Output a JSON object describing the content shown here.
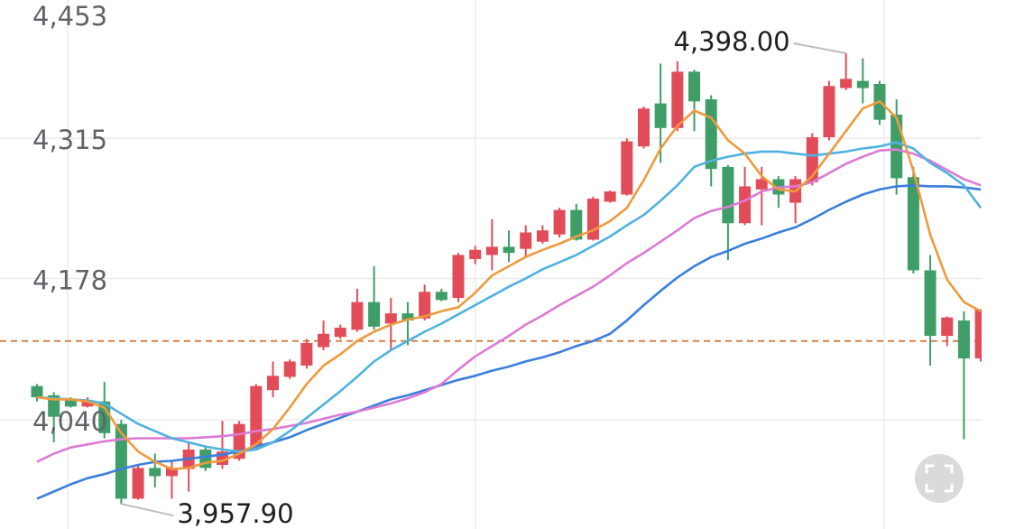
{
  "chart_data": {
    "type": "candlestick",
    "ylim": [
      3933.4,
      4450
    ],
    "yticks": [
      {
        "value": 4040,
        "label": "4,040"
      },
      {
        "value": 4178,
        "label": "4,178"
      },
      {
        "value": 4315,
        "label": "4,315"
      },
      {
        "value": 4453,
        "label": "4,453"
      }
    ],
    "grid": true,
    "up_color": "#e24c59",
    "down_color": "#3f9d68",
    "candles": {
      "open": [
        4073,
        4064,
        4060,
        4053,
        4058,
        4036,
        3963,
        3993,
        3985,
        3992,
        4011,
        3996,
        4002,
        4014,
        4069,
        4082,
        4093,
        4111,
        4121,
        4128,
        4155,
        4134,
        4144,
        4139,
        4165,
        4159,
        4197,
        4201,
        4209,
        4207,
        4214,
        4221,
        4245,
        4216,
        4253,
        4260,
        4307,
        4349,
        4325,
        4380,
        4353,
        4287,
        4232,
        4265,
        4275,
        4252,
        4272,
        4316,
        4364,
        4371,
        4368,
        4338,
        4277,
        4186,
        4122,
        4137,
        4100
      ],
      "high": [
        4075,
        4067,
        4062,
        4062,
        4077,
        4040,
        3996,
        4007,
        4000,
        4018,
        4014,
        4039,
        4039,
        4075,
        4097,
        4099,
        4119,
        4137,
        4133,
        4168,
        4190,
        4159,
        4155,
        4172,
        4168,
        4203,
        4210,
        4236,
        4225,
        4230,
        4230,
        4247,
        4251,
        4258,
        4264,
        4315,
        4346,
        4388,
        4390,
        4382,
        4357,
        4289,
        4287,
        4287,
        4278,
        4278,
        4320,
        4371,
        4398,
        4393,
        4371,
        4353,
        4287,
        4201,
        4141,
        4146,
        4148
      ],
      "low": [
        4058,
        4018,
        4052,
        4052,
        4022,
        3957.9,
        3962,
        3974,
        3963,
        3970,
        3990,
        3992,
        4000,
        4012,
        4062,
        4080,
        4090,
        4108,
        4119,
        4126,
        4128,
        4108,
        4113,
        4137,
        4156,
        4155,
        4192,
        4186,
        4194,
        4199,
        4212,
        4218,
        4215,
        4215,
        4252,
        4259,
        4305,
        4291,
        4322,
        4322,
        4268,
        4196,
        4230,
        4230,
        4247,
        4232,
        4269,
        4313,
        4362,
        4349,
        4328,
        4260,
        4183,
        4093,
        4112,
        4021,
        4097
      ],
      "close": [
        4062,
        4043,
        4053,
        4059,
        4027,
        3963,
        3993,
        3985,
        3993,
        4011,
        3993,
        4009,
        4036,
        4073,
        4083,
        4097,
        4115,
        4124,
        4130,
        4155,
        4131,
        4144,
        4137,
        4165,
        4157,
        4201,
        4206,
        4209,
        4203,
        4223,
        4225,
        4245,
        4216,
        4256,
        4263,
        4312,
        4344,
        4325,
        4380,
        4351,
        4285,
        4232,
        4268,
        4275,
        4260,
        4275,
        4316,
        4366,
        4373,
        4364,
        4333,
        4276,
        4186,
        4122,
        4140,
        4100,
        4148
      ]
    },
    "lines": [
      {
        "color": "#3b7fdc",
        "values": [
          3963,
          3970,
          3977,
          3983,
          3987,
          3992,
          3996,
          3999,
          4000,
          4002,
          4004,
          4006,
          4009,
          4014,
          4018,
          4023,
          4030,
          4036,
          4042,
          4048,
          4054,
          4060,
          4064,
          4069,
          4074,
          4079,
          4083,
          4088,
          4092,
          4097,
          4101,
          4106,
          4112,
          4117,
          4124,
          4137,
          4152,
          4166,
          4179,
          4190,
          4199,
          4205,
          4212,
          4217,
          4223,
          4228,
          4236,
          4245,
          4253,
          4260,
          4265,
          4268,
          4269,
          4268,
          4268,
          4267,
          4265
        ]
      },
      {
        "color": "#dc7ad6",
        "values": [
          3999,
          4007,
          4013,
          4016,
          4019,
          4021,
          4022,
          4022,
          4022,
          4022,
          4023,
          4024,
          4026,
          4029,
          4031,
          4034,
          4037,
          4041,
          4045,
          4048,
          4052,
          4056,
          4061,
          4067,
          4075,
          4089,
          4102,
          4112,
          4122,
          4133,
          4142,
          4152,
          4161,
          4170,
          4181,
          4193,
          4203,
          4214,
          4225,
          4237,
          4244,
          4248,
          4254,
          4263,
          4267,
          4268,
          4272,
          4281,
          4290,
          4297,
          4303,
          4304,
          4300,
          4293,
          4284,
          4275,
          4269
        ]
      },
      {
        "color": "#4fb2df",
        "values": [
          4062,
          4061,
          4060,
          4059,
          4056,
          4046,
          4036,
          4029,
          4022,
          4018,
          4014,
          4011,
          4009,
          4011,
          4018,
          4029,
          4042,
          4055,
          4068,
          4082,
          4097,
          4108,
          4117,
          4126,
          4134,
          4143,
          4152,
          4161,
          4170,
          4178,
          4187,
          4194,
          4201,
          4210,
          4219,
          4230,
          4240,
          4254,
          4269,
          4287,
          4293,
          4297,
          4300,
          4302,
          4302,
          4300,
          4298,
          4300,
          4302,
          4305,
          4307,
          4311,
          4305,
          4291,
          4281,
          4269,
          4247
        ]
      },
      {
        "color": "#ee9a3e",
        "values": [
          4062,
          4060,
          4060,
          4058,
          4052,
          4027,
          4009,
          3999,
          3992,
          3993,
          3998,
          4000,
          4007,
          4016,
          4031,
          4052,
          4075,
          4093,
          4104,
          4117,
          4126,
          4133,
          4138,
          4141,
          4146,
          4150,
          4164,
          4181,
          4190,
          4199,
          4206,
          4212,
          4219,
          4225,
          4234,
          4247,
          4274,
          4305,
          4327,
          4342,
          4335,
          4313,
          4300,
          4278,
          4265,
          4263,
          4278,
          4300,
          4322,
          4344,
          4351,
          4335,
          4283,
          4221,
          4177,
          4155,
          4146
        ]
      }
    ],
    "reference_line": {
      "value": 4117,
      "color": "#d5814a"
    },
    "max_label": "4,398.00",
    "min_label": "3,957.90"
  }
}
